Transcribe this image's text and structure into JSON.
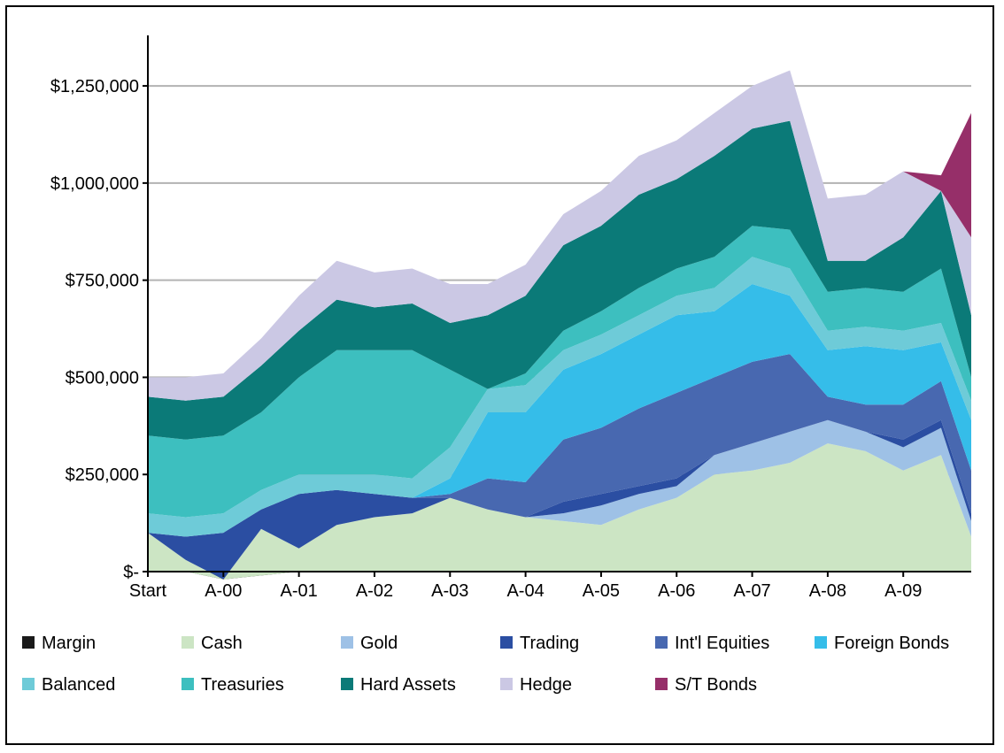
{
  "chart_data": {
    "type": "area",
    "stacked": true,
    "grid": "horizontal major gridlines",
    "legend_position": "bottom",
    "ylim": [
      0,
      1380000
    ],
    "y_ticks": [
      0,
      250000,
      500000,
      750000,
      1000000,
      1250000
    ],
    "y_tick_labels": [
      "$-",
      "$250,000",
      "$500,000",
      "$750,000",
      "$1,000,000",
      "$1,250,000"
    ],
    "x_range": [
      0,
      10.9
    ],
    "x_ticks": [
      0,
      1,
      2,
      3,
      4,
      5,
      6,
      7,
      8,
      9,
      10
    ],
    "x_tick_labels": [
      "Start",
      "A-00",
      "A-01",
      "A-02",
      "A-03",
      "A-04",
      "A-05",
      "A-06",
      "A-07",
      "A-08",
      "A-09"
    ],
    "x": [
      0,
      0.5,
      1,
      1.5,
      2,
      2.5,
      3,
      3.5,
      4,
      4.5,
      5,
      5.5,
      6,
      6.5,
      7,
      7.5,
      8,
      8.5,
      9,
      9.5,
      10,
      10.5,
      10.9
    ],
    "series": [
      {
        "name": "Margin",
        "color": "#1a1a1a",
        "values": [
          0,
          0,
          -20000,
          -10000,
          0,
          0,
          0,
          0,
          0,
          0,
          0,
          0,
          0,
          0,
          0,
          0,
          0,
          0,
          0,
          0,
          0,
          0,
          0
        ]
      },
      {
        "name": "Cash",
        "color": "#cce5c4",
        "values": [
          100000,
          30000,
          0,
          120000,
          60000,
          120000,
          140000,
          150000,
          190000,
          160000,
          140000,
          130000,
          120000,
          160000,
          190000,
          250000,
          260000,
          280000,
          330000,
          310000,
          260000,
          300000,
          90000
        ]
      },
      {
        "name": "Gold",
        "color": "#9ec1e6",
        "values": [
          0,
          0,
          0,
          0,
          0,
          0,
          0,
          0,
          0,
          0,
          0,
          20000,
          50000,
          40000,
          30000,
          50000,
          70000,
          80000,
          60000,
          50000,
          60000,
          70000,
          40000
        ]
      },
      {
        "name": "Trading",
        "color": "#2b4ea2",
        "values": [
          0,
          60000,
          120000,
          50000,
          140000,
          90000,
          60000,
          40000,
          0,
          0,
          0,
          30000,
          30000,
          20000,
          20000,
          0,
          0,
          0,
          0,
          0,
          20000,
          20000,
          20000
        ]
      },
      {
        "name": "Int'l Equities",
        "color": "#4868b0",
        "values": [
          0,
          0,
          0,
          0,
          0,
          0,
          0,
          0,
          10000,
          80000,
          90000,
          160000,
          170000,
          200000,
          220000,
          200000,
          210000,
          200000,
          60000,
          70000,
          90000,
          100000,
          110000
        ]
      },
      {
        "name": "Foreign Bonds",
        "color": "#35bde9",
        "values": [
          0,
          0,
          0,
          0,
          0,
          0,
          0,
          0,
          40000,
          170000,
          180000,
          180000,
          190000,
          190000,
          200000,
          170000,
          200000,
          150000,
          120000,
          150000,
          140000,
          100000,
          130000
        ]
      },
      {
        "name": "Balanced",
        "color": "#6ecbd8",
        "values": [
          50000,
          50000,
          50000,
          50000,
          50000,
          40000,
          50000,
          50000,
          80000,
          60000,
          70000,
          50000,
          50000,
          50000,
          50000,
          60000,
          70000,
          70000,
          50000,
          50000,
          50000,
          50000,
          50000
        ]
      },
      {
        "name": "Treasuries",
        "color": "#3dbfbf",
        "values": [
          200000,
          200000,
          200000,
          200000,
          250000,
          320000,
          320000,
          330000,
          200000,
          0,
          30000,
          50000,
          60000,
          70000,
          70000,
          80000,
          80000,
          100000,
          100000,
          100000,
          100000,
          140000,
          60000
        ]
      },
      {
        "name": "Hard Assets",
        "color": "#0b7a78",
        "values": [
          100000,
          100000,
          100000,
          120000,
          120000,
          130000,
          110000,
          120000,
          120000,
          190000,
          200000,
          220000,
          220000,
          240000,
          230000,
          260000,
          250000,
          280000,
          80000,
          70000,
          140000,
          200000,
          160000
        ]
      },
      {
        "name": "Hedge",
        "color": "#cbc8e4",
        "values": [
          50000,
          60000,
          60000,
          70000,
          90000,
          100000,
          90000,
          90000,
          100000,
          80000,
          80000,
          80000,
          90000,
          100000,
          100000,
          110000,
          110000,
          130000,
          160000,
          170000,
          170000,
          0,
          200000
        ]
      },
      {
        "name": "S/T Bonds",
        "color": "#962f69",
        "values": [
          0,
          0,
          0,
          0,
          0,
          0,
          0,
          0,
          0,
          0,
          0,
          0,
          0,
          0,
          0,
          0,
          0,
          0,
          0,
          0,
          0,
          40000,
          320000
        ]
      }
    ]
  }
}
